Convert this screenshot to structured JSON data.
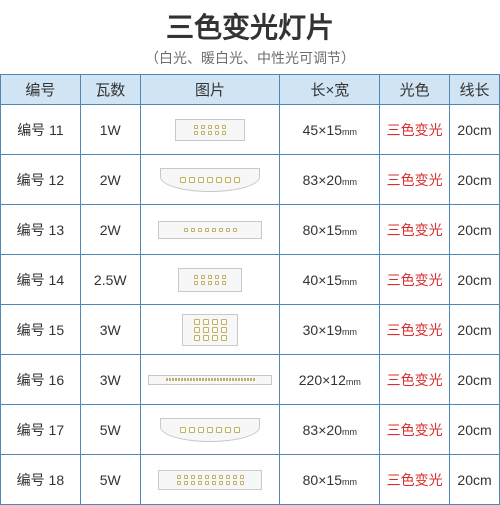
{
  "title": "三色变光灯片",
  "subtitle": "（白光、暖白光、中性光可调节）",
  "headers": {
    "id": "编号",
    "watt": "瓦数",
    "img": "图片",
    "dim": "长×宽",
    "color": "光色",
    "len": "线长"
  },
  "color_label": "三色变光",
  "color_hex": "#d82e2e",
  "header_bg": "#d1e4f3",
  "border_color": "#4f87b6",
  "rows": [
    {
      "id": "编号 11",
      "watt": "1W",
      "dim_l": "45",
      "dim_w": "15",
      "len": "20cm"
    },
    {
      "id": "编号 12",
      "watt": "2W",
      "dim_l": "83",
      "dim_w": "20",
      "len": "20cm"
    },
    {
      "id": "编号 13",
      "watt": "2W",
      "dim_l": "80",
      "dim_w": "15",
      "len": "20cm"
    },
    {
      "id": "编号 14",
      "watt": "2.5W",
      "dim_l": "40",
      "dim_w": "15",
      "len": "20cm"
    },
    {
      "id": "编号 15",
      "watt": "3W",
      "dim_l": "30",
      "dim_w": "19",
      "len": "20cm"
    },
    {
      "id": "编号 16",
      "watt": "3W",
      "dim_l": "220",
      "dim_w": "12",
      "len": "20cm"
    },
    {
      "id": "编号 17",
      "watt": "5W",
      "dim_l": "83",
      "dim_w": "20",
      "len": "20cm"
    },
    {
      "id": "编号 18",
      "watt": "5W",
      "dim_l": "80",
      "dim_w": "15",
      "len": "20cm"
    }
  ]
}
